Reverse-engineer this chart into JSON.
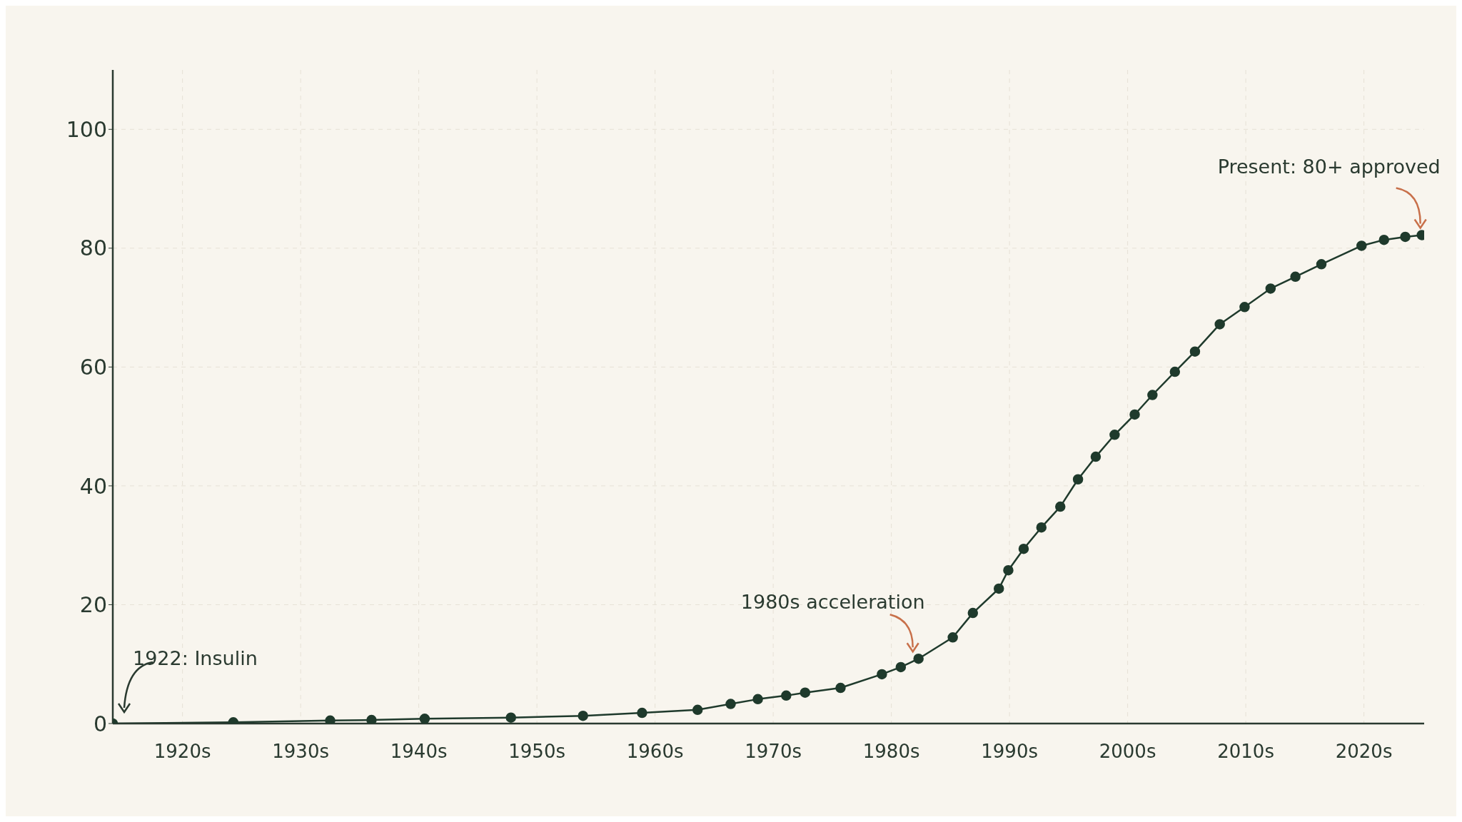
{
  "chart_data": {
    "type": "line",
    "color": "#1f3a2c",
    "marker": "circle",
    "line_style": "solid",
    "grid": true,
    "x": [
      1914.1,
      1924.3,
      1932.5,
      1936.0,
      1940.5,
      1947.8,
      1953.9,
      1958.9,
      1963.6,
      1966.4,
      1968.7,
      1971.1,
      1972.7,
      1975.7,
      1979.2,
      1980.8,
      1982.3,
      1985.2,
      1986.9,
      1989.1,
      1989.9,
      1991.2,
      1992.7,
      1994.3,
      1995.8,
      1997.3,
      1998.9,
      2000.6,
      2002.1,
      2004.0,
      2005.7,
      2007.8,
      2009.9,
      2012.1,
      2014.2,
      2016.4,
      2019.8,
      2021.7,
      2023.5,
      2024.9
    ],
    "values": [
      0,
      0.2,
      0.5,
      0.6,
      0.8,
      1.0,
      1.3,
      1.8,
      2.3,
      3.3,
      4.1,
      4.7,
      5.2,
      6.0,
      8.3,
      9.5,
      10.9,
      14.5,
      18.6,
      22.7,
      25.8,
      29.4,
      33.0,
      36.5,
      41.1,
      44.9,
      48.6,
      52.0,
      55.3,
      59.2,
      62.6,
      67.2,
      70.1,
      73.2,
      75.2,
      77.3,
      80.4,
      81.4,
      81.9,
      82.2
    ],
    "xlim": [
      1914.1,
      2025.1
    ],
    "xticks": [
      {
        "value": 1920,
        "label": "1920s"
      },
      {
        "value": 1930,
        "label": "1930s"
      },
      {
        "value": 1940,
        "label": "1940s"
      },
      {
        "value": 1950,
        "label": "1950s"
      },
      {
        "value": 1960,
        "label": "1960s"
      },
      {
        "value": 1970,
        "label": "1970s"
      },
      {
        "value": 1980,
        "label": "1980s"
      },
      {
        "value": 1990,
        "label": "1990s"
      },
      {
        "value": 2000,
        "label": "2000s"
      },
      {
        "value": 2010,
        "label": "2010s"
      },
      {
        "value": 2020,
        "label": "2020s"
      }
    ],
    "ylim": [
      0,
      110
    ],
    "yticks": [
      0,
      20,
      40,
      60,
      80,
      100
    ],
    "annotations": [
      {
        "text": "1922: Insulin",
        "x": 1914.1,
        "y": 0
      },
      {
        "text": "1980s acceleration",
        "x": 1982.3,
        "y": 10.9
      },
      {
        "text": "Present: 80+ approved",
        "x": 2024.9,
        "y": 82.2
      }
    ]
  }
}
